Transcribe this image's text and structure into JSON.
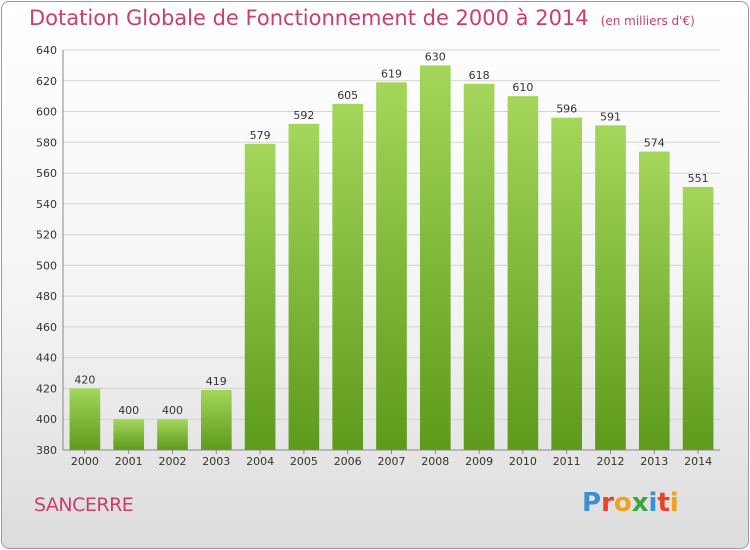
{
  "header": {
    "title": "Dotation Globale de Fonctionnement de 2000 à 2014",
    "unit": "(en milliers d'€)"
  },
  "footer": {
    "city": "SANCERRE",
    "logo_letters": [
      "P",
      "r",
      "o",
      "x",
      "i",
      "t",
      "i"
    ],
    "logo_colors": [
      "#3a8fd6",
      "#e8412c",
      "#f0a21e",
      "#3aa63a",
      "#3a8fd6",
      "#e8412c",
      "#f0a21e"
    ]
  },
  "colors": {
    "bar_top": "#a4d65a",
    "bar_bottom": "#5d9a1b",
    "accent": "#cc3d6b"
  },
  "chart_data": {
    "type": "bar",
    "title": "Dotation Globale de Fonctionnement de 2000 à 2014",
    "subtitle": "(en milliers d'€)",
    "categories": [
      "2000",
      "2001",
      "2002",
      "2003",
      "2004",
      "2005",
      "2006",
      "2007",
      "2008",
      "2009",
      "2010",
      "2011",
      "2012",
      "2013",
      "2014"
    ],
    "values": [
      420,
      400,
      400,
      419,
      579,
      592,
      605,
      619,
      630,
      618,
      610,
      596,
      591,
      574,
      551
    ],
    "ylim": [
      380,
      640
    ],
    "yticks": [
      380,
      400,
      420,
      440,
      460,
      480,
      500,
      520,
      540,
      560,
      580,
      600,
      620,
      640
    ],
    "grid": true,
    "data_labels": true
  }
}
